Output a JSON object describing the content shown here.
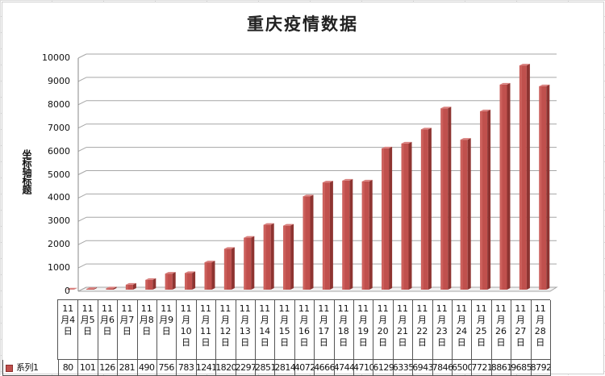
{
  "chart_data": {
    "type": "bar",
    "title": "重庆疫情数据",
    "ylabel": "坐标轴标题",
    "xlabel": "",
    "ylim": [
      0,
      10000
    ],
    "yticks": [
      0,
      1000,
      2000,
      3000,
      4000,
      5000,
      6000,
      7000,
      8000,
      9000,
      10000
    ],
    "categories": [
      "11月4日",
      "11月5日",
      "11月6日",
      "11月7日",
      "11月8日",
      "11月9日",
      "11月10日",
      "11月11日",
      "11月12日",
      "11月13日",
      "11月14日",
      "11月15日",
      "11月16日",
      "11月17日",
      "11月18日",
      "11月19日",
      "11月20日",
      "11月21日",
      "11月22日",
      "11月23日",
      "11月24日",
      "11月25日",
      "11月26日",
      "11月27日",
      "11月28日"
    ],
    "series": [
      {
        "name": "系列1",
        "color": "#c0504d",
        "values": [
          80,
          101,
          126,
          281,
          490,
          756,
          783,
          1241,
          1820,
          2297,
          2851,
          2814,
          4072,
          4666,
          4744,
          4710,
          6129,
          6335,
          6943,
          7846,
          6500,
          7721,
          8861,
          9685,
          8792
        ]
      }
    ],
    "grid": true,
    "legend": "data-table-left",
    "style": "3d-columns"
  }
}
